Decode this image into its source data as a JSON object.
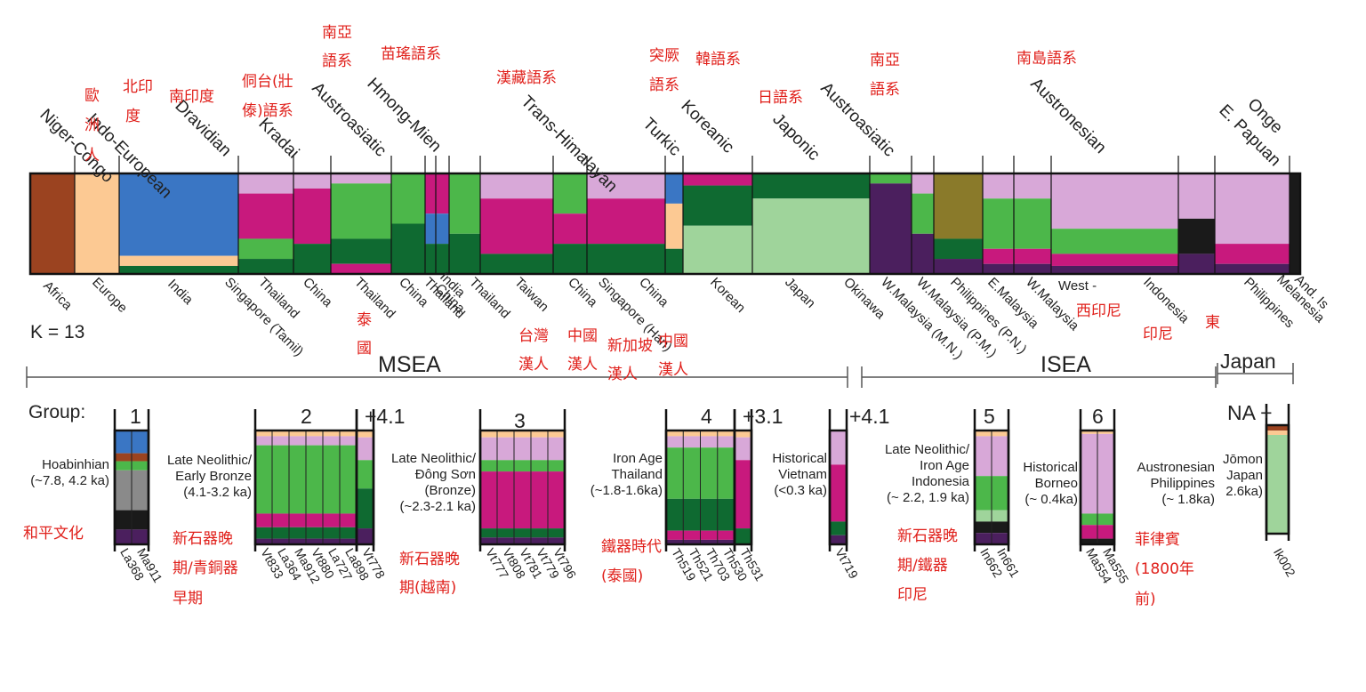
{
  "colors": {
    "niger_congo": "#9b4320",
    "europe": "#fcc993",
    "india": "#3a76c4",
    "pink": "#d8a8d8",
    "magenta": "#c8197d",
    "green": "#4cb74a",
    "darkgreen": "#0f6a31",
    "lightgreen": "#9fd49b",
    "olive": "#8a7a2a",
    "purple": "#4b1f5e",
    "black": "#1a1a1a",
    "grey": "#8a8a8a",
    "yellowgreen": "#c9d23a",
    "annotation": "#e0201b"
  },
  "chart_data": {
    "type": "bar",
    "k_label": "K = 13",
    "language_families": [
      "Niger-Congo",
      "Indo-European",
      "Dravidian",
      "Kradai",
      "Austroasiatic",
      "Hmong-Mien",
      "Trans-Himalayan",
      "Turkic",
      "Koreanic",
      "Japonic",
      "Austroasiatic",
      "Austronesian",
      "E. Papuan",
      "Onge"
    ],
    "populations": [
      "Africa",
      "Europe",
      "India",
      "Singapore (Tamil)",
      "Thailand",
      "China",
      "Thailand",
      "China",
      "Thailand",
      "India",
      "China",
      "Thailand",
      "Taiwan",
      "China",
      "Singapore (Han)",
      "China",
      "Korean",
      "Japan",
      "Okinawa",
      "W.Malaysia (M.N.)",
      "W.Malaysia (P.M.)",
      "Philippines (P.N.)",
      "E.Malaysia",
      "W.Malaysia",
      "West -",
      "Indonesia",
      "Philippines",
      "Melanesia",
      "And. Is"
    ],
    "regions": [
      "MSEA",
      "ISEA",
      "Japan"
    ],
    "group_label": "Group:",
    "groups": [
      {
        "id": "1",
        "period": [
          "Hoabinhian",
          "(~7.8, 4.2 ka)"
        ],
        "samples": [
          "La368",
          "Ma911"
        ]
      },
      {
        "id": "2",
        "period": [
          "Late Neolithic/",
          "Early Bronze",
          "(4.1-3.2 ka)"
        ],
        "samples": [
          "Vt833",
          "La364",
          "Ma912",
          "Vt880",
          "La727",
          "La898"
        ]
      },
      {
        "id": "4.1",
        "samples": [
          "Vt778"
        ]
      },
      {
        "id": "3",
        "period": [
          "Late Neolithic/",
          "Đông Sơn",
          "(Bronze)",
          "(~2.3-2.1 ka)"
        ],
        "samples": [
          "Vt777",
          "Vt808",
          "Vt781",
          "Vt779",
          "Vt796"
        ]
      },
      {
        "id": "4",
        "period": [
          "Iron Age",
          "Thailand",
          "(~1.8-1.6ka)"
        ],
        "samples": [
          "Th519",
          "Th521",
          "Th703",
          "Th530"
        ]
      },
      {
        "id": "3.1",
        "samples": [
          "Th531"
        ]
      },
      {
        "id": "4.1",
        "period": [
          "Historical",
          "Vietnam",
          "(<0.3 ka)"
        ],
        "samples": [
          "Vt719"
        ]
      },
      {
        "id": "5",
        "period": [
          "Late Neolithic/",
          "Iron Age",
          "Indonesia",
          "(~ 2.2, 1.9 ka)"
        ],
        "samples": [
          "In662",
          "In661"
        ]
      },
      {
        "id": "6",
        "period": [
          "Historical",
          "Borneo",
          "(~ 0.4ka)"
        ],
        "samples": [
          "Ma554",
          "Ma555"
        ]
      },
      {
        "id": "NA",
        "period": [
          "Austronesian",
          "Philippines",
          "(~ 1.8ka)"
        ],
        "samples": [
          "Ik002"
        ]
      },
      {
        "id": "",
        "period": [
          "Jōmon",
          "Japan",
          "2.6ka)"
        ],
        "samples": []
      }
    ],
    "annotations_zh": [
      "南亞",
      "語系",
      "苗瑤語系",
      "漢藏語系",
      "突厥",
      "語系",
      "韓語系",
      "南亞",
      "語系",
      "南島語系",
      "北印",
      "度",
      "歐",
      "洲",
      "人",
      "南印度",
      "侗台(壯",
      "傣)語系",
      "日語系",
      "泰",
      "國",
      "台灣",
      "漢人",
      "中國",
      "漢人",
      "新加坡",
      "漢人",
      "中國",
      "漢人",
      "西印尼",
      "印尼",
      "東",
      "和平文化",
      "新石器晚",
      "期/青銅器",
      "早期",
      "新石器晚",
      "期(越南)",
      "鐵器時代",
      "(泰國)",
      "新石器晚",
      "期/鐵器",
      "印尼",
      "菲律賓",
      "(1800年",
      "前)"
    ]
  }
}
